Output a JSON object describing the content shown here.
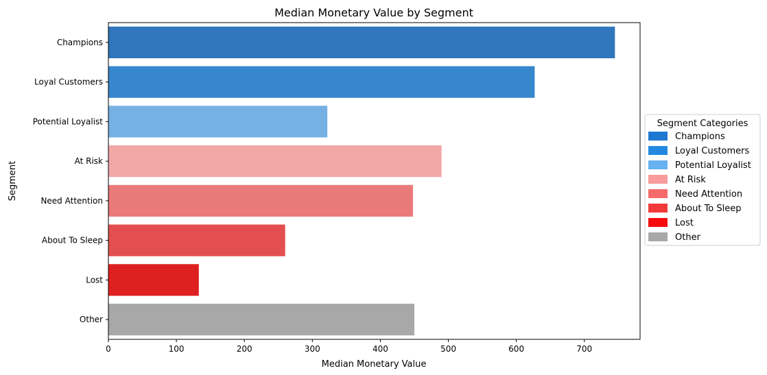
{
  "chart_data": {
    "type": "bar",
    "orientation": "horizontal",
    "title": "Median Monetary Value by Segment",
    "xlabel": "Median Monetary Value",
    "ylabel": "Segment",
    "xlim": [
      0,
      782
    ],
    "xticks": [
      0,
      100,
      200,
      300,
      400,
      500,
      600,
      700
    ],
    "grid": false,
    "categories": [
      "Champions",
      "Loyal Customers",
      "Potential Loyalist",
      "At Risk",
      "Need Attention",
      "About To Sleep",
      "Lost",
      "Other"
    ],
    "values": [
      745,
      627,
      322,
      490,
      448,
      260,
      133,
      450
    ],
    "bar_colors": [
      "#2f76bd",
      "#3787cd",
      "#76b1e4",
      "#f2a7a7",
      "#ea7a79",
      "#e34f4f",
      "#df2020",
      "#a8a8a8"
    ],
    "legend": {
      "title": "Segment Categories",
      "placement": "center-right-outside",
      "entries": [
        {
          "label": "Champions",
          "color": "#1e78d2"
        },
        {
          "label": "Loyal Customers",
          "color": "#2288e0"
        },
        {
          "label": "Potential Loyalist",
          "color": "#66b2f0"
        },
        {
          "label": "At Risk",
          "color": "#f89b9b"
        },
        {
          "label": "Need Attention",
          "color": "#f56a6a"
        },
        {
          "label": "About To Sleep",
          "color": "#f23a3a"
        },
        {
          "label": "Lost",
          "color": "#f50c0c"
        },
        {
          "label": "Other",
          "color": "#a8a8a8"
        }
      ]
    }
  }
}
